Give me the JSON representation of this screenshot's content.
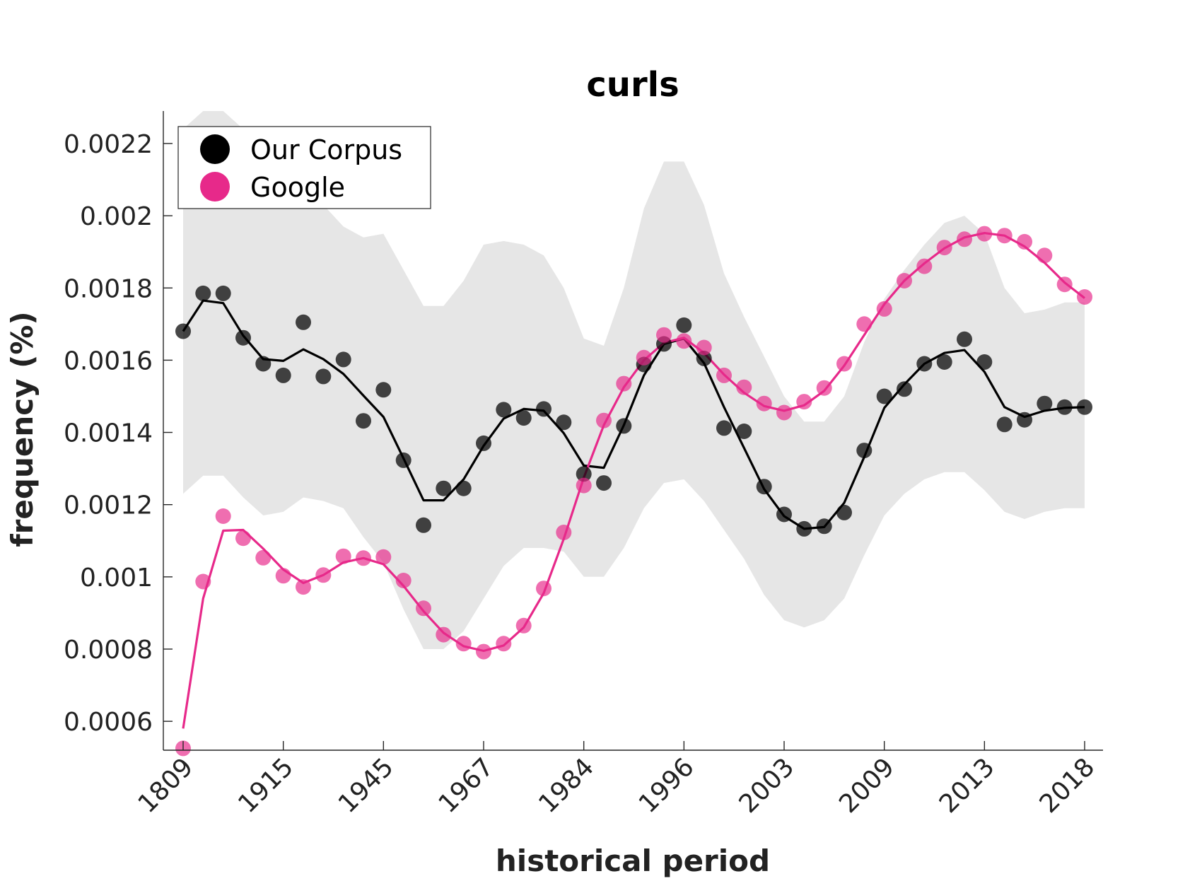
{
  "chart_data": {
    "type": "line",
    "title": "curls",
    "xlabel": "historical period",
    "ylabel": "frequency (%)",
    "ylim": [
      0.00052,
      0.00229
    ],
    "yticks": [
      "0.0006",
      "0.0008",
      "0.001",
      "0.0012",
      "0.0014",
      "0.0016",
      "0.0018",
      "0.002",
      "0.0022"
    ],
    "ytick_values": [
      0.0006,
      0.0008,
      0.001,
      0.0012,
      0.0014,
      0.0016,
      0.0018,
      0.002,
      0.0022
    ],
    "xtick_labels": [
      "1809",
      "1915",
      "1945",
      "1967",
      "1984",
      "1996",
      "2003",
      "2009",
      "2013",
      "2018"
    ],
    "xtick_index": [
      0,
      5,
      10,
      15,
      20,
      25,
      30,
      35,
      40,
      45
    ],
    "legend": {
      "position": "top-left",
      "entries": [
        "Our Corpus",
        "Google"
      ]
    },
    "colors": {
      "corpus": "#000000",
      "google": "#e7298a",
      "band": "#e6e6e6"
    },
    "band": {
      "upper": [
        0.00224,
        0.00229,
        0.00229,
        0.00224,
        0.00218,
        0.00215,
        0.0021,
        0.00203,
        0.00197,
        0.00194,
        0.00195,
        0.00185,
        0.00175,
        0.00175,
        0.00182,
        0.00192,
        0.00193,
        0.00192,
        0.00189,
        0.0018,
        0.00166,
        0.00164,
        0.0018,
        0.00202,
        0.00215,
        0.00215,
        0.00203,
        0.00184,
        0.00172,
        0.00161,
        0.0015,
        0.00143,
        0.00143,
        0.0015,
        0.00165,
        0.00177,
        0.00185,
        0.00192,
        0.00198,
        0.002,
        0.00195,
        0.0018,
        0.00173,
        0.00174,
        0.00176,
        0.00176
      ],
      "lower": [
        0.00123,
        0.00128,
        0.00128,
        0.00122,
        0.00117,
        0.00118,
        0.00122,
        0.00121,
        0.00119,
        0.00111,
        0.00104,
        0.00091,
        0.0008,
        0.0008,
        0.00085,
        0.00094,
        0.00103,
        0.00108,
        0.00108,
        0.00107,
        0.001,
        0.001,
        0.00108,
        0.00119,
        0.00126,
        0.00127,
        0.00121,
        0.00113,
        0.00105,
        0.00095,
        0.00088,
        0.00086,
        0.00088,
        0.00094,
        0.00106,
        0.00117,
        0.00123,
        0.00127,
        0.00129,
        0.00129,
        0.00124,
        0.00118,
        0.00116,
        0.00118,
        0.00119,
        0.00119
      ]
    },
    "series": [
      {
        "name": "Our Corpus",
        "points": [
          0.00168,
          0.001785,
          0.001785,
          0.001662,
          0.00159,
          0.001558,
          0.001705,
          0.001555,
          0.001602,
          0.001432,
          0.001518,
          0.001323,
          0.001143,
          0.001245,
          0.001245,
          0.00137,
          0.001463,
          0.00144,
          0.001465,
          0.001428,
          0.001285,
          0.00126,
          0.001418,
          0.001588,
          0.001645,
          0.001697,
          0.001605,
          0.001412,
          0.001403,
          0.00125,
          0.001173,
          0.001133,
          0.00114,
          0.001178,
          0.00135,
          0.0015,
          0.00152,
          0.00159,
          0.001595,
          0.001658,
          0.001595,
          0.001422,
          0.001435,
          0.00148,
          0.00147,
          0.00147
        ],
        "line": [
          0.00168,
          0.001765,
          0.001758,
          0.001668,
          0.001603,
          0.001598,
          0.00163,
          0.001603,
          0.001562,
          0.001502,
          0.001443,
          0.001328,
          0.001212,
          0.001212,
          0.00127,
          0.001363,
          0.001438,
          0.001465,
          0.00146,
          0.001398,
          0.001308,
          0.001302,
          0.00142,
          0.001558,
          0.001645,
          0.00166,
          0.001592,
          0.00147,
          0.001357,
          0.001243,
          0.001168,
          0.001133,
          0.001138,
          0.001205,
          0.001332,
          0.001468,
          0.001533,
          0.00159,
          0.00162,
          0.001628,
          0.001568,
          0.00147,
          0.001443,
          0.00146,
          0.001468,
          0.00147
        ]
      },
      {
        "name": "Google",
        "points": [
          0.000525,
          0.000987,
          0.001168,
          0.001107,
          0.001053,
          0.001003,
          0.000972,
          0.001005,
          0.001057,
          0.001052,
          0.001055,
          0.00099,
          0.000913,
          0.00084,
          0.000815,
          0.000793,
          0.000815,
          0.000865,
          0.000968,
          0.001123,
          0.001253,
          0.001433,
          0.001535,
          0.001607,
          0.00167,
          0.001653,
          0.001635,
          0.001558,
          0.001525,
          0.00148,
          0.001455,
          0.001485,
          0.001523,
          0.00159,
          0.0017,
          0.001742,
          0.00182,
          0.00186,
          0.001912,
          0.001935,
          0.00195,
          0.001945,
          0.001928,
          0.00189,
          0.00181,
          0.001775
        ],
        "line": [
          0.00058,
          0.00094,
          0.001128,
          0.00113,
          0.001078,
          0.00102,
          0.000983,
          0.001005,
          0.00104,
          0.001052,
          0.001035,
          0.000975,
          0.000905,
          0.000845,
          0.000808,
          0.000795,
          0.00081,
          0.00086,
          0.000955,
          0.001105,
          0.001275,
          0.00142,
          0.001525,
          0.0016,
          0.001648,
          0.001662,
          0.00162,
          0.00156,
          0.00151,
          0.001473,
          0.00146,
          0.001475,
          0.001515,
          0.001585,
          0.00167,
          0.001755,
          0.00182,
          0.001868,
          0.00191,
          0.00194,
          0.001952,
          0.001945,
          0.001915,
          0.00187,
          0.001815,
          0.001772
        ]
      }
    ]
  }
}
